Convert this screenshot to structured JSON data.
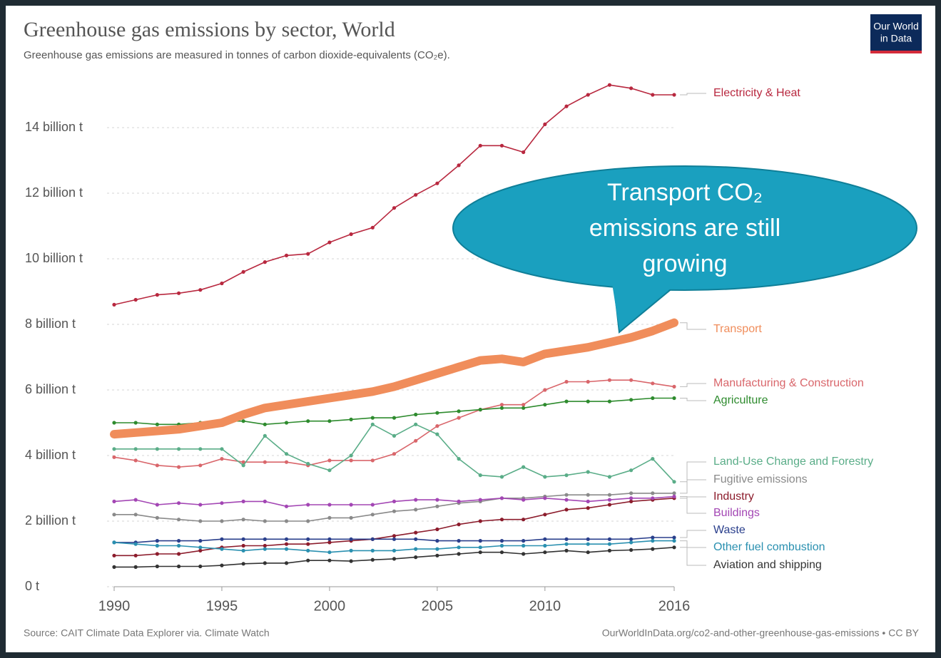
{
  "chart_data": {
    "type": "line",
    "title": "Greenhouse gas emissions by sector, World",
    "subtitle": "Greenhouse gas emissions are measured in tonnes of carbon dioxide-equivalents (CO₂e).",
    "source": "Source: CAIT Climate Data Explorer via. Climate Watch",
    "url": "OurWorldInData.org/co2-and-other-greenhouse-gas-emissions • CC BY",
    "logo": [
      "Our World",
      "in Data"
    ],
    "annotation": [
      "Transport CO₂",
      "emissions are still",
      "growing"
    ],
    "x": [
      1990,
      1991,
      1992,
      1993,
      1994,
      1995,
      1996,
      1997,
      1998,
      1999,
      2000,
      2001,
      2002,
      2003,
      2004,
      2005,
      2006,
      2007,
      2008,
      2009,
      2010,
      2011,
      2012,
      2013,
      2014,
      2015,
      2016
    ],
    "xlim": [
      1990,
      2016
    ],
    "xticks": [
      1990,
      1995,
      2000,
      2005,
      2010,
      2016
    ],
    "ylim": [
      0,
      15.5
    ],
    "yticks": [
      {
        "value": 0,
        "label": "0 t"
      },
      {
        "value": 2,
        "label": "2 billion t"
      },
      {
        "value": 4,
        "label": "4 billion t"
      },
      {
        "value": 6,
        "label": "6 billion t"
      },
      {
        "value": 8,
        "label": "8 billion t"
      },
      {
        "value": 10,
        "label": "10 billion t"
      },
      {
        "value": 12,
        "label": "12 billion t"
      },
      {
        "value": 14,
        "label": "14 billion t"
      }
    ],
    "grid": true,
    "series": [
      {
        "name": "Electricity & Heat",
        "color": "#b8283f",
        "values": [
          8.6,
          8.75,
          8.9,
          8.95,
          9.05,
          9.25,
          9.6,
          9.9,
          10.1,
          10.15,
          10.5,
          10.75,
          10.95,
          11.55,
          11.95,
          12.3,
          12.85,
          13.45,
          13.45,
          13.25,
          14.1,
          14.65,
          15.0,
          15.3,
          15.2,
          15.0,
          15.0
        ]
      },
      {
        "name": "Transport",
        "color": "#f08d5b",
        "highlight": true,
        "values": [
          4.65,
          4.7,
          4.75,
          4.8,
          4.9,
          5.0,
          5.25,
          5.45,
          5.55,
          5.65,
          5.75,
          5.85,
          5.95,
          6.1,
          6.3,
          6.5,
          6.7,
          6.9,
          6.95,
          6.85,
          7.1,
          7.2,
          7.3,
          7.45,
          7.6,
          7.8,
          8.05
        ]
      },
      {
        "name": "Manufacturing & Construction",
        "color": "#d9666b",
        "values": [
          3.95,
          3.85,
          3.7,
          3.65,
          3.7,
          3.9,
          3.8,
          3.8,
          3.8,
          3.7,
          3.85,
          3.85,
          3.85,
          4.05,
          4.45,
          4.9,
          5.15,
          5.4,
          5.55,
          5.55,
          6.0,
          6.25,
          6.25,
          6.3,
          6.3,
          6.2,
          6.1
        ]
      },
      {
        "name": "Agriculture",
        "color": "#2e8b2e",
        "values": [
          5.0,
          5.0,
          4.95,
          4.95,
          5.0,
          5.05,
          5.05,
          4.95,
          5.0,
          5.05,
          5.05,
          5.1,
          5.15,
          5.15,
          5.25,
          5.3,
          5.35,
          5.4,
          5.45,
          5.45,
          5.55,
          5.65,
          5.65,
          5.65,
          5.7,
          5.75,
          5.75
        ]
      },
      {
        "name": "Land-Use Change and Forestry",
        "color": "#5aad88",
        "values": [
          4.2,
          4.2,
          4.2,
          4.2,
          4.2,
          4.2,
          3.7,
          4.6,
          4.05,
          3.75,
          3.55,
          4.0,
          4.95,
          4.6,
          4.95,
          4.65,
          3.9,
          3.4,
          3.35,
          3.65,
          3.35,
          3.4,
          3.5,
          3.35,
          3.55,
          3.9,
          3.2
        ]
      },
      {
        "name": "Fugitive emissions",
        "color": "#8a8a8a",
        "values": [
          2.2,
          2.2,
          2.1,
          2.05,
          2.0,
          2.0,
          2.05,
          2.0,
          2.0,
          2.0,
          2.1,
          2.1,
          2.2,
          2.3,
          2.35,
          2.45,
          2.55,
          2.6,
          2.7,
          2.7,
          2.75,
          2.8,
          2.8,
          2.8,
          2.85,
          2.85,
          2.85
        ]
      },
      {
        "name": "Industry",
        "color": "#8c1c2c",
        "values": [
          0.95,
          0.95,
          1.0,
          1.0,
          1.1,
          1.2,
          1.25,
          1.25,
          1.3,
          1.3,
          1.35,
          1.4,
          1.45,
          1.55,
          1.65,
          1.75,
          1.9,
          2.0,
          2.05,
          2.05,
          2.2,
          2.35,
          2.4,
          2.5,
          2.6,
          2.65,
          2.7
        ]
      },
      {
        "name": "Buildings",
        "color": "#a346b4",
        "values": [
          2.6,
          2.65,
          2.5,
          2.55,
          2.5,
          2.55,
          2.6,
          2.6,
          2.45,
          2.5,
          2.5,
          2.5,
          2.5,
          2.6,
          2.65,
          2.65,
          2.6,
          2.65,
          2.7,
          2.65,
          2.7,
          2.65,
          2.6,
          2.65,
          2.7,
          2.7,
          2.75
        ]
      },
      {
        "name": "Waste",
        "color": "#2a3f8c",
        "values": [
          1.35,
          1.35,
          1.4,
          1.4,
          1.4,
          1.45,
          1.45,
          1.45,
          1.45,
          1.45,
          1.45,
          1.45,
          1.45,
          1.45,
          1.45,
          1.4,
          1.4,
          1.4,
          1.4,
          1.4,
          1.45,
          1.45,
          1.45,
          1.45,
          1.45,
          1.5,
          1.5
        ]
      },
      {
        "name": "Other fuel combustion",
        "color": "#2a90b0",
        "values": [
          1.35,
          1.3,
          1.25,
          1.25,
          1.2,
          1.15,
          1.1,
          1.15,
          1.15,
          1.1,
          1.05,
          1.1,
          1.1,
          1.1,
          1.15,
          1.15,
          1.2,
          1.2,
          1.25,
          1.25,
          1.25,
          1.3,
          1.3,
          1.3,
          1.35,
          1.4,
          1.4
        ]
      },
      {
        "name": "Aviation and shipping",
        "color": "#333333",
        "values": [
          0.6,
          0.6,
          0.62,
          0.62,
          0.62,
          0.65,
          0.7,
          0.72,
          0.72,
          0.8,
          0.8,
          0.78,
          0.82,
          0.85,
          0.9,
          0.95,
          1.0,
          1.05,
          1.05,
          1.0,
          1.05,
          1.1,
          1.05,
          1.1,
          1.12,
          1.15,
          1.2
        ]
      }
    ]
  }
}
